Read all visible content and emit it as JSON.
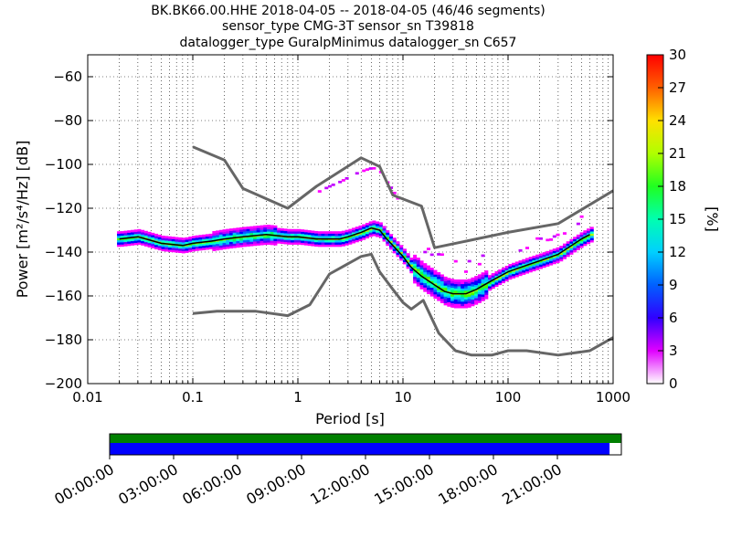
{
  "title_lines": [
    "BK.BK66.00.HHE   2018-04-05 -- 2018-04-05  (46/46 segments)",
    "sensor_type CMG-3T sensor_sn T39818",
    "datalogger_type GuralpMinimus datalogger_sn C657"
  ],
  "colorbar": {
    "label": "[%]",
    "ticks": [
      "0",
      "3",
      "6",
      "9",
      "12",
      "15",
      "18",
      "21",
      "24",
      "27",
      "30"
    ],
    "range": [
      0,
      30
    ]
  },
  "timeline": {
    "ticks": [
      "00:00:00",
      "03:00:00",
      "06:00:00",
      "09:00:00",
      "12:00:00",
      "15:00:00",
      "18:00:00",
      "21:00:00"
    ],
    "coverage_color_top": "#008000",
    "coverage_color_bottom": "#0000ff",
    "data_coverage_fraction": 0.977
  },
  "chart_data": {
    "type": "heatmap",
    "title": "BK.BK66.00.HHE   2018-04-05 -- 2018-04-05  (46/46 segments)",
    "xlabel": "Period [s]",
    "ylabel": "Power [m²/s⁴/Hz] [dB]",
    "xscale": "log",
    "xlim": [
      0.01,
      1000
    ],
    "ylim": [
      -200,
      -50
    ],
    "x_ticks": [
      "0.01",
      "0.1",
      "1",
      "10",
      "100",
      "1000"
    ],
    "y_ticks": [
      "−60",
      "−80",
      "−100",
      "−120",
      "−140",
      "−160",
      "−180",
      "−200"
    ],
    "grid": true,
    "mean_curve": {
      "x": [
        0.02,
        0.03,
        0.05,
        0.08,
        0.1,
        0.15,
        0.2,
        0.3,
        0.5,
        0.8,
        1,
        1.5,
        2,
        2.5,
        3,
        4,
        5,
        6,
        7,
        8,
        10,
        12,
        15,
        20,
        25,
        30,
        40,
        50,
        70,
        100,
        150,
        200,
        300,
        500,
        600
      ],
      "y": [
        -134,
        -133,
        -136,
        -137,
        -136,
        -135,
        -134,
        -133,
        -132,
        -133,
        -133,
        -134,
        -134,
        -134,
        -133,
        -131,
        -129,
        -130,
        -134,
        -137,
        -142,
        -147,
        -151,
        -155,
        -158,
        -159,
        -159,
        -157,
        -153,
        -149,
        -146,
        -144,
        -141,
        -134,
        -132
      ]
    },
    "nhnm": {
      "x": [
        0.1,
        0.2,
        0.3,
        0.8,
        1.5,
        4,
        6,
        8,
        15,
        20,
        40,
        100,
        300,
        1000
      ],
      "y": [
        -92,
        -98,
        -111,
        -120,
        -110,
        -97,
        -101,
        -114,
        -119,
        -138,
        -135,
        -131,
        -127,
        -112
      ]
    },
    "nlnm": {
      "x": [
        0.1,
        0.17,
        0.4,
        0.8,
        1.3,
        2,
        4,
        5,
        6,
        8,
        10,
        12,
        15.6,
        21.9,
        31.6,
        45,
        70,
        100,
        150,
        300,
        600,
        1000
      ],
      "y": [
        -168,
        -167,
        -167,
        -169,
        -164,
        -150,
        -142,
        -141,
        -149,
        -157,
        -163,
        -166,
        -162,
        -177,
        -185,
        -187,
        -187,
        -185,
        -185,
        -187,
        -185,
        -179
      ]
    },
    "density_color_scale": "white-magenta-blue-cyan-green-yellow-red"
  }
}
